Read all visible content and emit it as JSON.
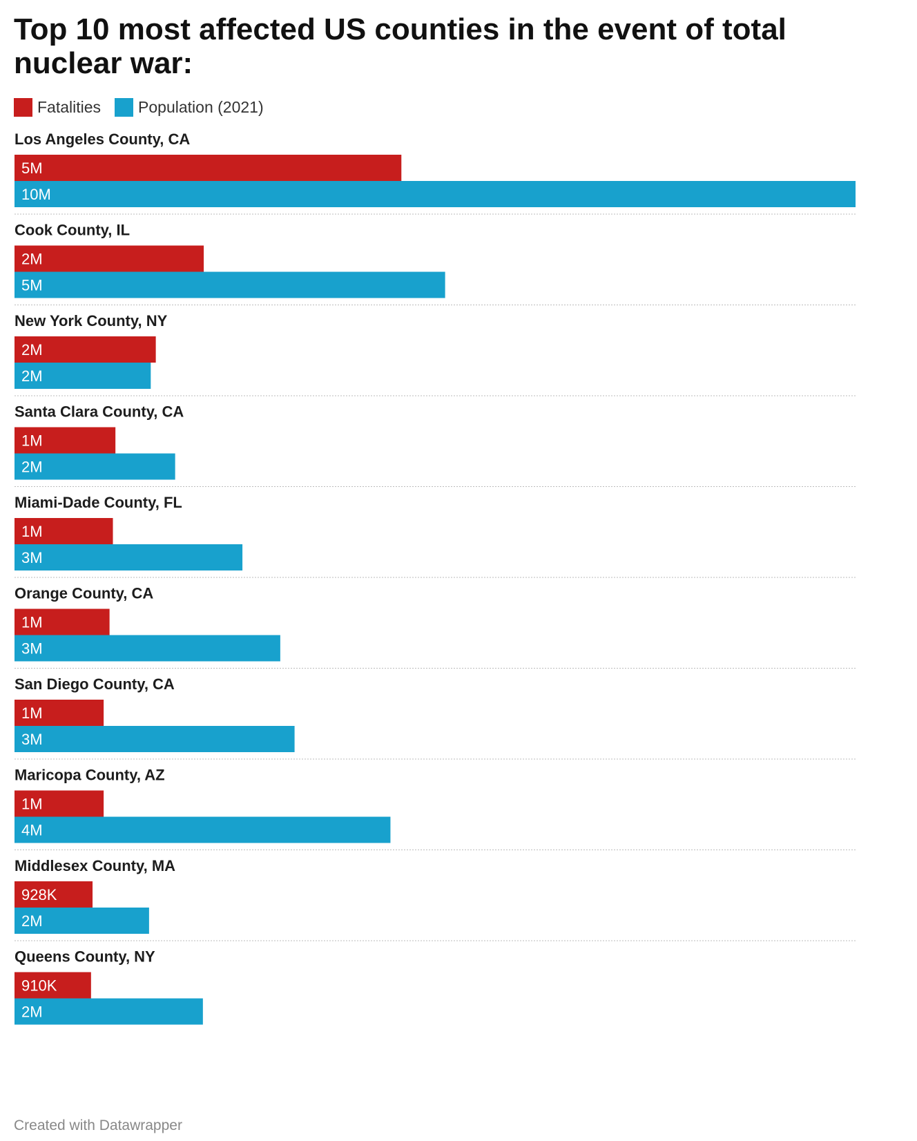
{
  "chart_data": {
    "type": "bar",
    "orientation": "horizontal",
    "title": "Top 10 most affected US counties in the event of total nuclear war:",
    "categories": [
      "Los Angeles County, CA",
      "Cook County, IL",
      "New York County, NY",
      "Santa Clara County, CA",
      "Miami-Dade County, FL",
      "Orange County, CA",
      "San Diego County, CA",
      "Maricopa County, AZ",
      "Middlesex County, MA",
      "Queens County, NY"
    ],
    "series": [
      {
        "name": "Fatalities",
        "color": "#c71e1d",
        "values": [
          4600000,
          2250000,
          1680000,
          1200000,
          1170000,
          1130000,
          1060000,
          1060000,
          928000,
          910000
        ],
        "labels": [
          "5M",
          "2M",
          "2M",
          "1M",
          "1M",
          "1M",
          "1M",
          "1M",
          "928K",
          "910K"
        ]
      },
      {
        "name": "Population (2021)",
        "color": "#18a1cd",
        "values": [
          10000000,
          5120000,
          1620000,
          1910000,
          2710000,
          3160000,
          3330000,
          4470000,
          1600000,
          2240000
        ],
        "labels": [
          "10M",
          "5M",
          "2M",
          "2M",
          "3M",
          "3M",
          "3M",
          "4M",
          "2M",
          "2M"
        ]
      }
    ],
    "xlim": [
      0,
      10000000
    ],
    "grid": false,
    "legend_position": "top-left",
    "footer": "Created with Datawrapper"
  }
}
